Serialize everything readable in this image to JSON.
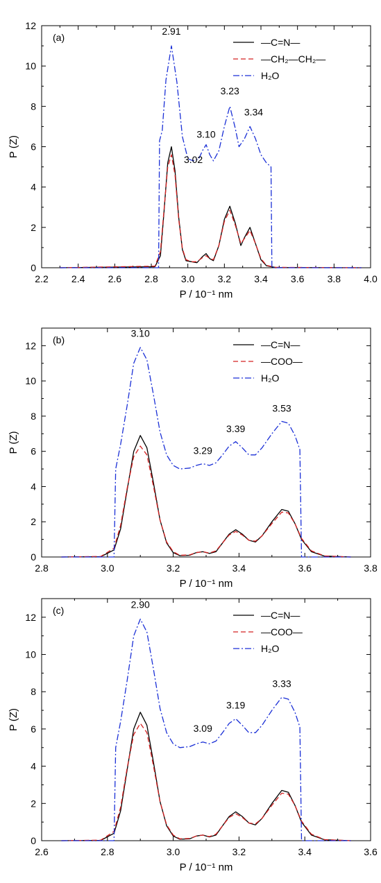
{
  "chart_data": [
    {
      "type": "line",
      "panel_label": "(a)",
      "xlabel": "P / 10⁻¹ nm",
      "ylabel": "P (Z)",
      "xlim": [
        2.2,
        4.0
      ],
      "ylim": [
        0,
        12
      ],
      "xticks": [
        2.2,
        2.4,
        2.6,
        2.8,
        3.0,
        3.2,
        3.4,
        3.6,
        3.8,
        4.0
      ],
      "yticks": [
        0,
        2,
        4,
        6,
        8,
        10,
        12
      ],
      "legend_position": "top-right",
      "colors": {
        "cn": "#000000",
        "group": "#d42020",
        "water": "#1a2fd6"
      },
      "series": [
        {
          "name": "—C=N—",
          "style": "solid",
          "x": [
            2.3,
            2.82,
            2.85,
            2.87,
            2.89,
            2.91,
            2.93,
            2.95,
            2.97,
            2.99,
            3.02,
            3.05,
            3.08,
            3.1,
            3.12,
            3.14,
            3.17,
            3.2,
            3.23,
            3.26,
            3.29,
            3.31,
            3.34,
            3.37,
            3.4,
            3.43,
            3.48,
            3.95
          ],
          "y": [
            0,
            0.05,
            0.6,
            2.8,
            5.2,
            6.0,
            4.8,
            2.5,
            0.9,
            0.35,
            0.3,
            0.25,
            0.55,
            0.7,
            0.45,
            0.35,
            1.1,
            2.4,
            3.05,
            2.2,
            1.1,
            1.5,
            2.0,
            1.2,
            0.4,
            0.1,
            0.01,
            0
          ]
        },
        {
          "name": "—CH₂—CH₂—",
          "style": "dashed",
          "x": [
            2.3,
            2.82,
            2.85,
            2.87,
            2.89,
            2.91,
            2.93,
            2.95,
            2.97,
            2.99,
            3.02,
            3.05,
            3.08,
            3.1,
            3.12,
            3.14,
            3.17,
            3.2,
            3.23,
            3.26,
            3.29,
            3.31,
            3.34,
            3.37,
            3.4,
            3.43,
            3.48,
            3.95
          ],
          "y": [
            0,
            0.08,
            0.8,
            2.9,
            5.0,
            5.6,
            4.6,
            2.4,
            0.95,
            0.4,
            0.3,
            0.3,
            0.5,
            0.6,
            0.45,
            0.4,
            1.1,
            2.3,
            2.85,
            2.1,
            1.2,
            1.45,
            1.85,
            1.2,
            0.45,
            0.12,
            0.02,
            0
          ]
        },
        {
          "name": "H₂O",
          "style": "dash-dot",
          "x": [
            2.3,
            2.84,
            2.845,
            2.86,
            2.88,
            2.91,
            2.94,
            2.97,
            3.0,
            3.03,
            3.06,
            3.08,
            3.1,
            3.12,
            3.14,
            3.17,
            3.2,
            3.23,
            3.26,
            3.28,
            3.31,
            3.34,
            3.37,
            3.4,
            3.43,
            3.455,
            3.46,
            3.95
          ],
          "y": [
            0,
            0,
            6.3,
            6.8,
            9.3,
            11.0,
            9.2,
            6.5,
            5.4,
            5.3,
            5.4,
            5.8,
            6.1,
            5.6,
            5.3,
            5.8,
            7.0,
            8.0,
            6.9,
            6.0,
            6.4,
            7.0,
            6.4,
            5.6,
            5.2,
            5.0,
            0,
            0
          ]
        }
      ],
      "annotations": [
        {
          "text": "2.91",
          "x": 2.91,
          "y": 11.55
        },
        {
          "text": "3.23",
          "x": 3.23,
          "y": 8.6
        },
        {
          "text": "3.34",
          "x": 3.36,
          "y": 7.55
        },
        {
          "text": "3.10",
          "x": 3.1,
          "y": 6.45
        },
        {
          "text": "3.02",
          "x": 3.03,
          "y": 5.2
        }
      ]
    },
    {
      "type": "line",
      "panel_label": "(b)",
      "xlabel": "P / 10⁻¹ nm",
      "ylabel": "P (Z)",
      "xlim": [
        2.8,
        3.8
      ],
      "ylim": [
        0,
        13
      ],
      "xticks": [
        2.8,
        3.0,
        3.2,
        3.4,
        3.6,
        3.8
      ],
      "yticks": [
        0,
        2,
        4,
        6,
        8,
        10,
        12
      ],
      "legend_position": "top-right",
      "colors": {
        "cn": "#000000",
        "group": "#d42020",
        "water": "#1a2fd6"
      },
      "series": [
        {
          "name": "—C=N—",
          "style": "solid",
          "x": [
            2.86,
            2.98,
            3.02,
            3.04,
            3.06,
            3.08,
            3.1,
            3.12,
            3.14,
            3.16,
            3.18,
            3.2,
            3.22,
            3.25,
            3.27,
            3.29,
            3.31,
            3.33,
            3.35,
            3.37,
            3.39,
            3.41,
            3.43,
            3.45,
            3.47,
            3.5,
            3.53,
            3.55,
            3.57,
            3.59,
            3.62,
            3.66,
            3.74
          ],
          "y": [
            0,
            0.02,
            0.4,
            1.6,
            3.8,
            6.0,
            6.9,
            6.2,
            4.2,
            2.1,
            0.8,
            0.25,
            0.08,
            0.1,
            0.25,
            0.3,
            0.2,
            0.3,
            0.8,
            1.3,
            1.55,
            1.3,
            0.95,
            0.85,
            1.2,
            2.0,
            2.7,
            2.6,
            1.9,
            1.0,
            0.3,
            0.05,
            0
          ]
        },
        {
          "name": "—COO—",
          "style": "dashed",
          "x": [
            2.86,
            2.98,
            3.02,
            3.04,
            3.06,
            3.08,
            3.1,
            3.12,
            3.14,
            3.16,
            3.18,
            3.2,
            3.22,
            3.25,
            3.27,
            3.29,
            3.31,
            3.33,
            3.35,
            3.37,
            3.39,
            3.41,
            3.43,
            3.45,
            3.47,
            3.5,
            3.53,
            3.55,
            3.57,
            3.59,
            3.62,
            3.66,
            3.74
          ],
          "y": [
            0,
            0.03,
            0.5,
            1.8,
            3.9,
            5.7,
            6.3,
            5.8,
            4.0,
            2.1,
            0.85,
            0.3,
            0.1,
            0.12,
            0.25,
            0.3,
            0.22,
            0.35,
            0.8,
            1.25,
            1.45,
            1.25,
            0.95,
            0.9,
            1.2,
            1.9,
            2.55,
            2.5,
            1.9,
            1.05,
            0.35,
            0.06,
            0
          ]
        },
        {
          "name": "H₂O",
          "style": "dash-dot",
          "x": [
            2.86,
            3.02,
            3.025,
            3.04,
            3.06,
            3.08,
            3.1,
            3.12,
            3.14,
            3.16,
            3.18,
            3.2,
            3.22,
            3.25,
            3.27,
            3.29,
            3.31,
            3.33,
            3.35,
            3.37,
            3.39,
            3.41,
            3.43,
            3.45,
            3.47,
            3.5,
            3.53,
            3.55,
            3.57,
            3.585,
            3.59,
            3.74
          ],
          "y": [
            0,
            0,
            5.0,
            6.4,
            8.6,
            11.0,
            11.9,
            11.2,
            9.2,
            7.1,
            5.8,
            5.2,
            5.0,
            5.05,
            5.2,
            5.3,
            5.2,
            5.35,
            5.8,
            6.3,
            6.55,
            6.2,
            5.8,
            5.8,
            6.2,
            7.0,
            7.7,
            7.6,
            6.9,
            6.1,
            0,
            0
          ]
        }
      ],
      "annotations": [
        {
          "text": "3.10",
          "x": 3.1,
          "y": 12.5
        },
        {
          "text": "3.29",
          "x": 3.29,
          "y": 5.85
        },
        {
          "text": "3.39",
          "x": 3.39,
          "y": 7.1
        },
        {
          "text": "3.53",
          "x": 3.53,
          "y": 8.25
        }
      ]
    },
    {
      "type": "line",
      "panel_label": "(c)",
      "xlabel": "P / 10⁻¹ nm",
      "ylabel": "P (Z)",
      "xlim": [
        2.6,
        3.6
      ],
      "ylim": [
        0,
        13
      ],
      "xticks": [
        2.6,
        2.8,
        3.0,
        3.2,
        3.4,
        3.6
      ],
      "yticks": [
        0,
        2,
        4,
        6,
        8,
        10,
        12
      ],
      "legend_position": "top-right",
      "colors": {
        "cn": "#000000",
        "group": "#d42020",
        "water": "#1a2fd6"
      },
      "series": [
        {
          "name": "—C=N—",
          "style": "solid",
          "x": [
            2.66,
            2.78,
            2.82,
            2.84,
            2.86,
            2.88,
            2.9,
            2.92,
            2.94,
            2.96,
            2.98,
            3.0,
            3.02,
            3.05,
            3.07,
            3.09,
            3.11,
            3.13,
            3.15,
            3.17,
            3.19,
            3.21,
            3.23,
            3.25,
            3.27,
            3.3,
            3.33,
            3.35,
            3.37,
            3.39,
            3.42,
            3.46,
            3.54
          ],
          "y": [
            0,
            0.02,
            0.4,
            1.6,
            3.8,
            6.0,
            6.9,
            6.2,
            4.2,
            2.1,
            0.8,
            0.25,
            0.08,
            0.1,
            0.25,
            0.3,
            0.2,
            0.3,
            0.8,
            1.3,
            1.55,
            1.3,
            0.95,
            0.85,
            1.2,
            2.0,
            2.7,
            2.6,
            1.9,
            1.0,
            0.3,
            0.05,
            0
          ]
        },
        {
          "name": "—COO—",
          "style": "dashed",
          "x": [
            2.66,
            2.78,
            2.82,
            2.84,
            2.86,
            2.88,
            2.9,
            2.92,
            2.94,
            2.96,
            2.98,
            3.0,
            3.02,
            3.05,
            3.07,
            3.09,
            3.11,
            3.13,
            3.15,
            3.17,
            3.19,
            3.21,
            3.23,
            3.25,
            3.27,
            3.3,
            3.33,
            3.35,
            3.37,
            3.39,
            3.42,
            3.46,
            3.54
          ],
          "y": [
            0,
            0.03,
            0.5,
            1.8,
            3.9,
            5.7,
            6.3,
            5.8,
            4.0,
            2.1,
            0.85,
            0.3,
            0.1,
            0.12,
            0.25,
            0.3,
            0.22,
            0.35,
            0.8,
            1.25,
            1.45,
            1.25,
            0.95,
            0.9,
            1.2,
            1.9,
            2.55,
            2.5,
            1.9,
            1.05,
            0.35,
            0.06,
            0
          ]
        },
        {
          "name": "H₂O",
          "style": "dash-dot",
          "x": [
            2.66,
            2.82,
            2.825,
            2.84,
            2.86,
            2.88,
            2.9,
            2.92,
            2.94,
            2.96,
            2.98,
            3.0,
            3.02,
            3.05,
            3.07,
            3.09,
            3.11,
            3.13,
            3.15,
            3.17,
            3.19,
            3.21,
            3.23,
            3.25,
            3.27,
            3.3,
            3.33,
            3.35,
            3.37,
            3.385,
            3.39,
            3.54
          ],
          "y": [
            0,
            0,
            5.0,
            6.4,
            8.6,
            11.0,
            11.9,
            11.2,
            9.2,
            7.1,
            5.8,
            5.2,
            5.0,
            5.05,
            5.2,
            5.3,
            5.2,
            5.35,
            5.8,
            6.3,
            6.55,
            6.2,
            5.8,
            5.8,
            6.2,
            7.0,
            7.7,
            7.6,
            6.9,
            6.1,
            0,
            0
          ]
        }
      ],
      "annotations": [
        {
          "text": "2.90",
          "x": 2.9,
          "y": 12.5
        },
        {
          "text": "3.09",
          "x": 3.09,
          "y": 5.85
        },
        {
          "text": "3.19",
          "x": 3.19,
          "y": 7.1
        },
        {
          "text": "3.33",
          "x": 3.33,
          "y": 8.25
        }
      ]
    }
  ]
}
